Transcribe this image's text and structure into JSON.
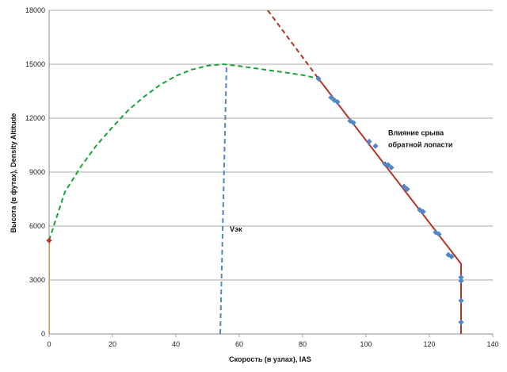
{
  "chart_data": {
    "type": "line",
    "title": "",
    "xlabel": "Скорость (в узлах), IAS",
    "ylabel": "Высота (в футах), Density Altitude",
    "xlim": [
      0,
      140
    ],
    "ylim": [
      0,
      18000
    ],
    "x_ticks": [
      0,
      20,
      40,
      60,
      80,
      100,
      120,
      140
    ],
    "y_ticks": [
      0,
      3000,
      6000,
      9000,
      12000,
      15000,
      18000
    ],
    "grid": "horizontal",
    "annotations": [
      {
        "text": "Vэк",
        "x": 57,
        "y": 5700
      },
      {
        "text": "Влияние срыва",
        "x": 107,
        "y": 11050
      },
      {
        "text": "обратной лопасти",
        "x": 107,
        "y": 10400
      }
    ],
    "series": [
      {
        "style": "dashed",
        "color": "#1aa336",
        "x": [
          0,
          2,
          5,
          10,
          15,
          20,
          25,
          30,
          35,
          40,
          45,
          50,
          55,
          60,
          70,
          80,
          85
        ],
        "y": [
          5200,
          6300,
          7900,
          9300,
          10500,
          11500,
          12450,
          13200,
          13850,
          14350,
          14700,
          14920,
          15000,
          14900,
          14650,
          14400,
          14200
        ]
      },
      {
        "style": "dashed",
        "color": "#4f86c6",
        "x": [
          54,
          56
        ],
        "y": [
          0,
          15000
        ]
      },
      {
        "style": "solid",
        "color": "#b5342a",
        "x": [
          85,
          130,
          130
        ],
        "y": [
          14200,
          3900,
          0
        ]
      },
      {
        "style": "dashed",
        "color": "#b5342a",
        "x": [
          69,
          85
        ],
        "y": [
          18000,
          14200
        ]
      },
      {
        "style": "solid",
        "color": "#e49a3a",
        "x": [
          0,
          0
        ],
        "y": [
          0,
          5200
        ]
      },
      {
        "style": "markers",
        "marker": "diamond",
        "color": "#4f86c6",
        "x": [
          85,
          89,
          90,
          91,
          95,
          96,
          101,
          103,
          106,
          107,
          108,
          112,
          113,
          117,
          118,
          122,
          123,
          126,
          127,
          130,
          130,
          130,
          130
        ],
        "y": [
          14200,
          13150,
          13000,
          12900,
          11850,
          11750,
          10700,
          10450,
          9450,
          9400,
          9250,
          8200,
          8050,
          6900,
          6800,
          5650,
          5550,
          4400,
          4300,
          3150,
          2950,
          1850,
          650
        ]
      },
      {
        "style": "markers",
        "marker": "diamond",
        "color": "#c0392b",
        "x": [
          0
        ],
        "y": [
          5200
        ]
      }
    ]
  }
}
